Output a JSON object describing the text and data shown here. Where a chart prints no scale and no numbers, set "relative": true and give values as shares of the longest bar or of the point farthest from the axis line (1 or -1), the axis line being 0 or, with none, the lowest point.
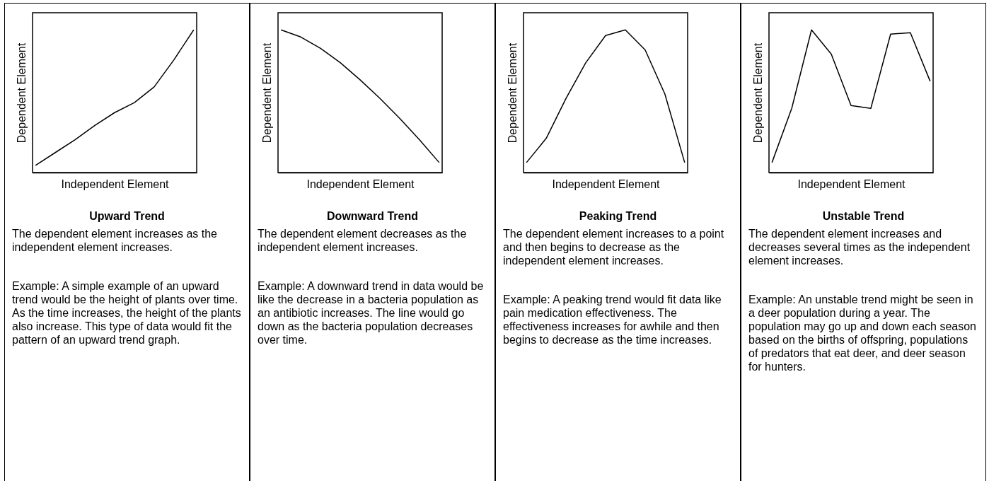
{
  "chart_data": [
    {
      "type": "line",
      "title": "Upward Trend",
      "xlabel": "Independent Element",
      "ylabel": "Dependent Element",
      "relative": true,
      "categories": [
        null,
        null,
        null,
        null,
        null,
        null,
        null,
        null,
        null
      ],
      "series": [
        {
          "color": "#000000",
          "values": [
            0.05,
            0.14,
            0.23,
            0.33,
            0.42,
            0.49,
            0.6,
            0.79,
            1
          ]
        }
      ],
      "annotations": [
        "The dependent element increases as the independent element increases.",
        "Example:  A simple example of an upward trend would be the height of plants over time. As the time increases, the height of the plants also increase. This type of data would fit the pattern of an upward trend graph."
      ]
    },
    {
      "type": "line",
      "title": "Downward Trend",
      "xlabel": "Independent Element",
      "ylabel": "Dependent Element",
      "relative": true,
      "categories": [
        null,
        null,
        null,
        null,
        null,
        null,
        null,
        null,
        null
      ],
      "series": [
        {
          "color": "#000000",
          "values": [
            1,
            0.95,
            0.87,
            0.77,
            0.65,
            0.52,
            0.38,
            0.23,
            0.07
          ]
        }
      ],
      "annotations": [
        "The dependent element decreases as the independent element increases.",
        "Example:  A downward trend in data would be like the decrease in a bacteria population as an antibiotic increases. The line would go down as the bacteria population decreases over time."
      ]
    },
    {
      "type": "line",
      "title": "Peaking Trend",
      "xlabel": "Independent Element",
      "ylabel": "Dependent Element",
      "relative": true,
      "categories": [
        null,
        null,
        null,
        null,
        null,
        null,
        null,
        null,
        null
      ],
      "series": [
        {
          "color": "#000000",
          "values": [
            0.07,
            0.24,
            0.52,
            0.77,
            0.96,
            1,
            0.86,
            0.55,
            0.07
          ]
        }
      ],
      "annotations": [
        "The dependent element increases to a point and then begins to decrease as the independent element increases.",
        "Example:  A peaking trend would fit data like pain medication effectiveness. The effectiveness increases for awhile and then begins to decrease as the time increases."
      ]
    },
    {
      "type": "line",
      "title": "Unstable Trend",
      "xlabel": "Independent Element",
      "ylabel": "Dependent Element",
      "relative": true,
      "categories": [
        null,
        null,
        null,
        null,
        null,
        null,
        null,
        null,
        null
      ],
      "series": [
        {
          "color": "#000000",
          "values": [
            0.07,
            0.45,
            1,
            0.83,
            0.47,
            0.45,
            0.97,
            0.98,
            0.64
          ]
        }
      ],
      "annotations": [
        "The dependent element increases and decreases several times as the independent element increases.",
        "Example:  An unstable trend might be seen in a deer population during a year. The population may go up and down each season based on the births of offspring, populations of predators that eat deer, and deer season for hunters."
      ]
    }
  ]
}
